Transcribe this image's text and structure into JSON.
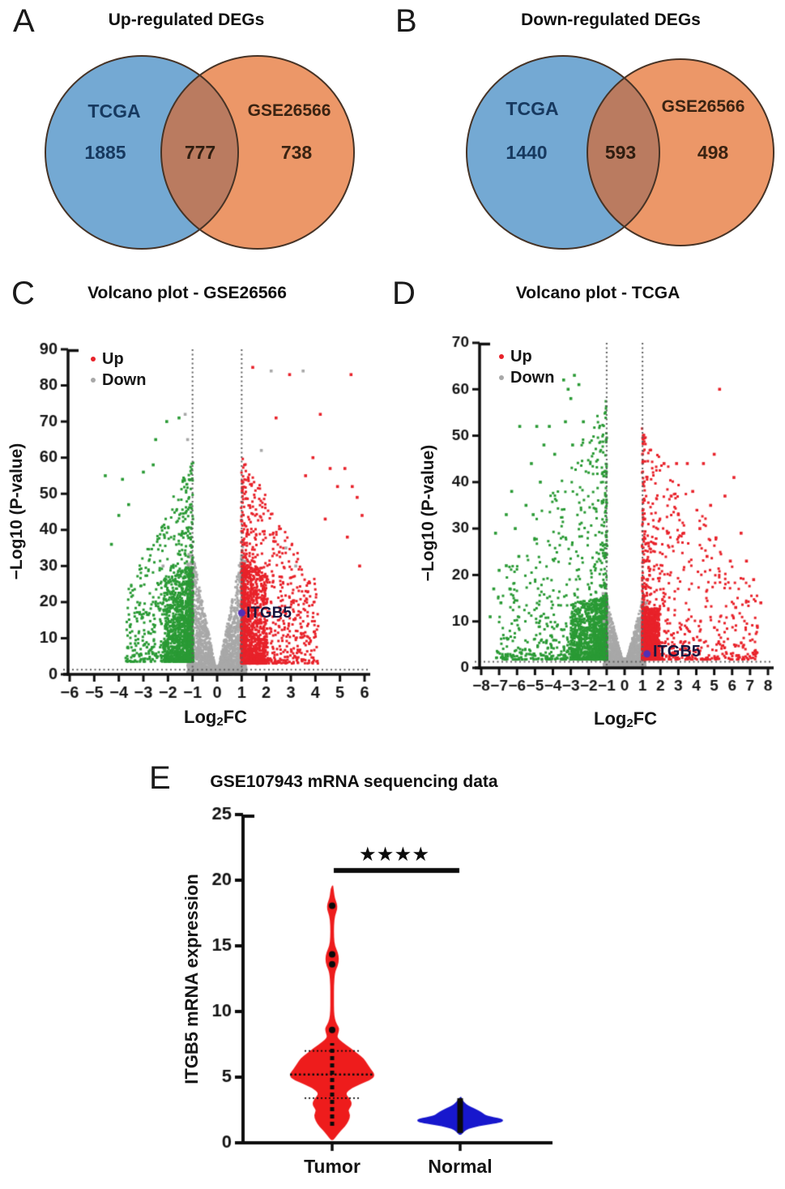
{
  "figure": {
    "background": "#ffffff",
    "venn_stroke": "#463326"
  },
  "chart_data": [
    {
      "type": "venn",
      "panel": "A",
      "title": "Up-regulated DEGs",
      "sets": [
        {
          "label": "TCGA",
          "only_count": 1885,
          "color": "#74a9d3"
        },
        {
          "label": "GSE26566",
          "only_count": 738,
          "color": "#ec9768"
        }
      ],
      "overlap_count": 777,
      "overlap_color": "#ba7b60"
    },
    {
      "type": "venn",
      "panel": "B",
      "title": "Down-regulated DEGs",
      "sets": [
        {
          "label": "TCGA",
          "only_count": 1440,
          "color": "#74a9d3"
        },
        {
          "label": "GSE26566",
          "only_count": 498,
          "color": "#ec9768"
        }
      ],
      "overlap_count": 593,
      "overlap_color": "#ba7b60"
    },
    {
      "type": "volcano",
      "panel": "C",
      "title": "Volcano plot - GSE26566",
      "xlabel": "Log2FC",
      "xlabel_parts": [
        "Log",
        "2",
        "FC"
      ],
      "ylabel": "−Log10 (P-value)",
      "xlim": [
        -6,
        6
      ],
      "ylim": [
        0,
        90
      ],
      "xticks": [
        -6,
        -5,
        -4,
        -3,
        -2,
        -1,
        0,
        1,
        2,
        3,
        4,
        5,
        6
      ],
      "yticks": [
        0,
        10,
        20,
        30,
        40,
        50,
        60,
        70,
        80,
        90
      ],
      "thresholds": {
        "x": [
          -1,
          1
        ],
        "y": 1.3
      },
      "legend": [
        {
          "label": "Up",
          "color": "#e8222a"
        },
        {
          "label": "Down",
          "color": "#a8a8a8"
        }
      ],
      "annotated_point": {
        "label": "ITGB5",
        "x": 1.0,
        "y": 17,
        "color": "#5230b5"
      },
      "seed": 11,
      "clusters": [
        {
          "type": "wedge",
          "color": "#a8a8a8",
          "n": 2600,
          "xmax": 1.06,
          "slope": 34,
          "ypow": 2.0
        },
        {
          "type": "mound",
          "color": "#a8a8a8",
          "n": 350,
          "sigma": 0.28,
          "ymax": 2.5
        },
        {
          "type": "side",
          "color": "#a8a8a8",
          "n": 260,
          "side": 1,
          "x0": 1.0,
          "spread": 0.18,
          "xpow": 1.0,
          "ybase": 0.5,
          "yspan": 33,
          "ypow": 2.2,
          "decay": 99
        },
        {
          "type": "side",
          "color": "#a8a8a8",
          "n": 260,
          "side": -1,
          "x0": 1.0,
          "spread": 0.18,
          "xpow": 1.0,
          "ybase": 0.5,
          "yspan": 33,
          "ypow": 2.2,
          "decay": 99
        },
        {
          "type": "side",
          "color": "#2a9a35",
          "n": 950,
          "side": -1,
          "x0": 1.0,
          "spread": 1.15,
          "xpow": 1.6,
          "ybase": 3.5,
          "yspan": 27,
          "ypow": 1.8,
          "decay": 9
        },
        {
          "type": "side",
          "color": "#2a9a35",
          "n": 650,
          "side": -1,
          "x0": 1.0,
          "spread": 2.7,
          "xpow": 1.9,
          "ybase": 3.5,
          "yspan": 56,
          "ypow": 1.7,
          "decay": 4.2
        },
        {
          "type": "side",
          "color": "#e8222a",
          "n": 950,
          "side": 1,
          "x0": 1.0,
          "spread": 1.05,
          "xpow": 1.6,
          "ybase": 3.0,
          "yspan": 28,
          "ypow": 1.8,
          "decay": 9
        },
        {
          "type": "side",
          "color": "#e8222a",
          "n": 750,
          "side": 1,
          "x0": 1.0,
          "spread": 3.1,
          "xpow": 1.9,
          "ybase": 3.0,
          "yspan": 58,
          "ypow": 1.6,
          "decay": 5.0
        },
        {
          "type": "points",
          "color": "#2a9a35",
          "pts": [
            [
              -2.05,
              70
            ],
            [
              -1.55,
              71
            ],
            [
              -2.5,
              65
            ],
            [
              -4.55,
              55
            ],
            [
              -3.85,
              54
            ],
            [
              -3.0,
              56
            ],
            [
              -2.6,
              58
            ],
            [
              -4.0,
              44
            ],
            [
              -4.3,
              36
            ],
            [
              -3.6,
              47
            ]
          ]
        },
        {
          "type": "points",
          "color": "#e8222a",
          "pts": [
            [
              1.45,
              85
            ],
            [
              2.95,
              83
            ],
            [
              5.45,
              83
            ],
            [
              4.2,
              72
            ],
            [
              2.4,
              71
            ],
            [
              3.9,
              60
            ],
            [
              4.6,
              57
            ],
            [
              5.2,
              57
            ],
            [
              4.9,
              52
            ],
            [
              5.7,
              49
            ],
            [
              5.9,
              44
            ],
            [
              5.3,
              38
            ],
            [
              4.4,
              43
            ],
            [
              3.6,
              55
            ],
            [
              5.8,
              30
            ],
            [
              5.5,
              52
            ]
          ]
        },
        {
          "type": "points",
          "color": "#a8a8a8",
          "pts": [
            [
              2.2,
              84
            ],
            [
              3.5,
              84
            ],
            [
              -1.3,
              72
            ],
            [
              -1.2,
              65
            ],
            [
              2.8,
              35
            ],
            [
              3.2,
              30
            ],
            [
              -2.2,
              30
            ],
            [
              1.8,
              62
            ]
          ]
        }
      ]
    },
    {
      "type": "volcano",
      "panel": "D",
      "title": "Volcano plot - TCGA",
      "xlabel": "Log2FC",
      "xlabel_parts": [
        "Log",
        "2",
        "FC"
      ],
      "ylabel": "−Log10 (P-value)",
      "xlim": [
        -8,
        8
      ],
      "ylim": [
        0,
        70
      ],
      "xticks": [
        -8,
        -7,
        -6,
        -5,
        -4,
        -3,
        -2,
        -1,
        0,
        1,
        2,
        3,
        4,
        5,
        6,
        7,
        8
      ],
      "yticks": [
        0,
        10,
        20,
        30,
        40,
        50,
        60,
        70
      ],
      "thresholds": {
        "x": [
          -1,
          1
        ],
        "y": 1.3
      },
      "legend": [
        {
          "label": "Up",
          "color": "#e8222a"
        },
        {
          "label": "Down",
          "color": "#a8a8a8"
        }
      ],
      "annotated_point": {
        "label": "ITGB5",
        "x": 1.25,
        "y": 3,
        "color": "#5230b5"
      },
      "seed": 23,
      "clusters": [
        {
          "type": "wedge",
          "color": "#a8a8a8",
          "n": 2200,
          "xmax": 1.06,
          "slope": 15,
          "ypow": 2.0
        },
        {
          "type": "mound",
          "color": "#a8a8a8",
          "n": 300,
          "sigma": 0.3,
          "ymax": 2.2
        },
        {
          "type": "side",
          "color": "#a8a8a8",
          "n": 180,
          "side": 1,
          "x0": 1.0,
          "spread": 0.15,
          "xpow": 1.0,
          "ybase": 0.4,
          "yspan": 14,
          "ypow": 2.0,
          "decay": 99
        },
        {
          "type": "side",
          "color": "#a8a8a8",
          "n": 180,
          "side": -1,
          "x0": 1.0,
          "spread": 0.15,
          "xpow": 1.0,
          "ybase": 0.4,
          "yspan": 14,
          "ypow": 2.0,
          "decay": 99
        },
        {
          "type": "side",
          "color": "#2a9a35",
          "n": 1000,
          "side": -1,
          "x0": 1.0,
          "spread": 2.0,
          "xpow": 1.6,
          "ybase": 1.8,
          "yspan": 13.5,
          "ypow": 1.5,
          "decay": 20
        },
        {
          "type": "side",
          "color": "#2a9a35",
          "n": 850,
          "side": -1,
          "x0": 1.0,
          "spread": 6.2,
          "xpow": 2.1,
          "ybase": 1.8,
          "yspan": 56,
          "ypow": 2.3,
          "decay": 8.5
        },
        {
          "type": "side",
          "color": "#e8222a",
          "n": 1050,
          "side": 1,
          "x0": 1.0,
          "spread": 0.95,
          "xpow": 1.5,
          "ybase": 1.8,
          "yspan": 11.5,
          "ypow": 1.5,
          "decay": 20
        },
        {
          "type": "side",
          "color": "#e8222a",
          "n": 800,
          "side": 1,
          "x0": 1.0,
          "spread": 6.4,
          "xpow": 2.4,
          "ybase": 1.8,
          "yspan": 50,
          "ypow": 2.3,
          "decay": 9
        },
        {
          "type": "points",
          "color": "#2a9a35",
          "pts": [
            [
              -3.4,
              62
            ],
            [
              -3.15,
              60
            ],
            [
              -3.0,
              58
            ],
            [
              -2.8,
              63
            ],
            [
              -2.55,
              61
            ],
            [
              -4.9,
              52
            ],
            [
              -5.85,
              52
            ],
            [
              -4.5,
              48
            ],
            [
              -5.2,
              44
            ],
            [
              -3.9,
              46
            ],
            [
              -6.3,
              38
            ],
            [
              -7.2,
              29
            ],
            [
              -6.9,
              14
            ],
            [
              -7.5,
              11
            ],
            [
              -6.6,
              22
            ],
            [
              -2.3,
              53
            ],
            [
              -4.2,
              52
            ],
            [
              -3.3,
              53
            ],
            [
              -2.9,
              48
            ],
            [
              -5.5,
              35
            ],
            [
              -6.1,
              30
            ],
            [
              -6.6,
              33
            ],
            [
              -7.0,
              21
            ],
            [
              -5.9,
              24
            ],
            [
              -6.4,
              17
            ],
            [
              -7.3,
              17
            ],
            [
              -4.7,
              40
            ],
            [
              -5.1,
              33
            ]
          ]
        },
        {
          "type": "points",
          "color": "#e8222a",
          "pts": [
            [
              5.3,
              60
            ],
            [
              4.4,
              44
            ],
            [
              5.0,
              46
            ],
            [
              6.1,
              41
            ],
            [
              5.6,
              37
            ],
            [
              6.5,
              29
            ],
            [
              7.2,
              19
            ],
            [
              7.6,
              14
            ],
            [
              4.8,
              35
            ],
            [
              3.5,
              44
            ],
            [
              2.6,
              37
            ],
            [
              2.2,
              44
            ],
            [
              3.0,
              33
            ],
            [
              3.8,
              38
            ],
            [
              4.2,
              30
            ],
            [
              5.9,
              23
            ],
            [
              6.8,
              23
            ],
            [
              7.4,
              9
            ],
            [
              6.2,
              13
            ],
            [
              5.1,
              28
            ],
            [
              4.6,
              24
            ],
            [
              2.4,
              29
            ],
            [
              2.9,
              44
            ],
            [
              3.3,
              29
            ]
          ]
        },
        {
          "type": "points",
          "color": "#a8a8a8",
          "pts": [
            [
              -1.2,
              16
            ],
            [
              1.2,
              14
            ],
            [
              -1.15,
              10
            ]
          ]
        }
      ]
    },
    {
      "type": "violin",
      "panel": "E",
      "title": "GSE107943 mRNA sequencing data",
      "ylabel": "ITGB5 mRNA expression",
      "ylim": [
        0,
        25
      ],
      "yticks": [
        0,
        5,
        10,
        15,
        20,
        25
      ],
      "categories": [
        "Tumor",
        "Normal"
      ],
      "significance": "****",
      "significance_display": "★★★★",
      "series": [
        {
          "name": "Tumor",
          "color": "#ee1c1c",
          "median": 5.2,
          "quartiles": [
            3.4,
            7.0
          ],
          "center_dash_range": [
            1.3,
            7.6
          ],
          "center_dots": [
            8.6,
            13.6,
            14.35,
            18.05
          ],
          "profile": [
            [
              0.25,
              0.02
            ],
            [
              0.5,
              0.08
            ],
            [
              0.9,
              0.18
            ],
            [
              1.3,
              0.3
            ],
            [
              1.7,
              0.38
            ],
            [
              2.1,
              0.42
            ],
            [
              2.5,
              0.36
            ],
            [
              2.9,
              0.46
            ],
            [
              3.3,
              0.42
            ],
            [
              3.7,
              0.3
            ],
            [
              4.1,
              0.4
            ],
            [
              4.5,
              0.66
            ],
            [
              4.9,
              0.95
            ],
            [
              5.2,
              1.0
            ],
            [
              5.6,
              0.9
            ],
            [
              6.0,
              0.82
            ],
            [
              6.4,
              0.74
            ],
            [
              6.8,
              0.58
            ],
            [
              7.2,
              0.42
            ],
            [
              7.6,
              0.24
            ],
            [
              8.0,
              0.1
            ],
            [
              8.35,
              0.13
            ],
            [
              8.7,
              0.16
            ],
            [
              9.0,
              0.1
            ],
            [
              9.4,
              0.05
            ],
            [
              10.0,
              0.028
            ],
            [
              11.0,
              0.028
            ],
            [
              12.0,
              0.028
            ],
            [
              13.0,
              0.05
            ],
            [
              13.5,
              0.12
            ],
            [
              14.0,
              0.15
            ],
            [
              14.5,
              0.12
            ],
            [
              15.0,
              0.05
            ],
            [
              15.6,
              0.028
            ],
            [
              16.6,
              0.028
            ],
            [
              17.3,
              0.05
            ],
            [
              17.8,
              0.11
            ],
            [
              18.2,
              0.1
            ],
            [
              18.6,
              0.05
            ],
            [
              19.1,
              0.028
            ],
            [
              19.55,
              0.01
            ]
          ]
        },
        {
          "name": "Normal",
          "color": "#1717cd",
          "center_bar": [
            0.75,
            3.4
          ],
          "profile": [
            [
              0.65,
              0.02
            ],
            [
              0.9,
              0.08
            ],
            [
              1.1,
              0.18
            ],
            [
              1.3,
              0.42
            ],
            [
              1.5,
              0.78
            ],
            [
              1.65,
              1.0
            ],
            [
              1.8,
              0.96
            ],
            [
              2.0,
              0.62
            ],
            [
              2.2,
              0.52
            ],
            [
              2.4,
              0.44
            ],
            [
              2.6,
              0.3
            ],
            [
              2.8,
              0.18
            ],
            [
              3.0,
              0.1
            ],
            [
              3.2,
              0.05
            ],
            [
              3.45,
              0.015
            ]
          ]
        }
      ]
    }
  ]
}
